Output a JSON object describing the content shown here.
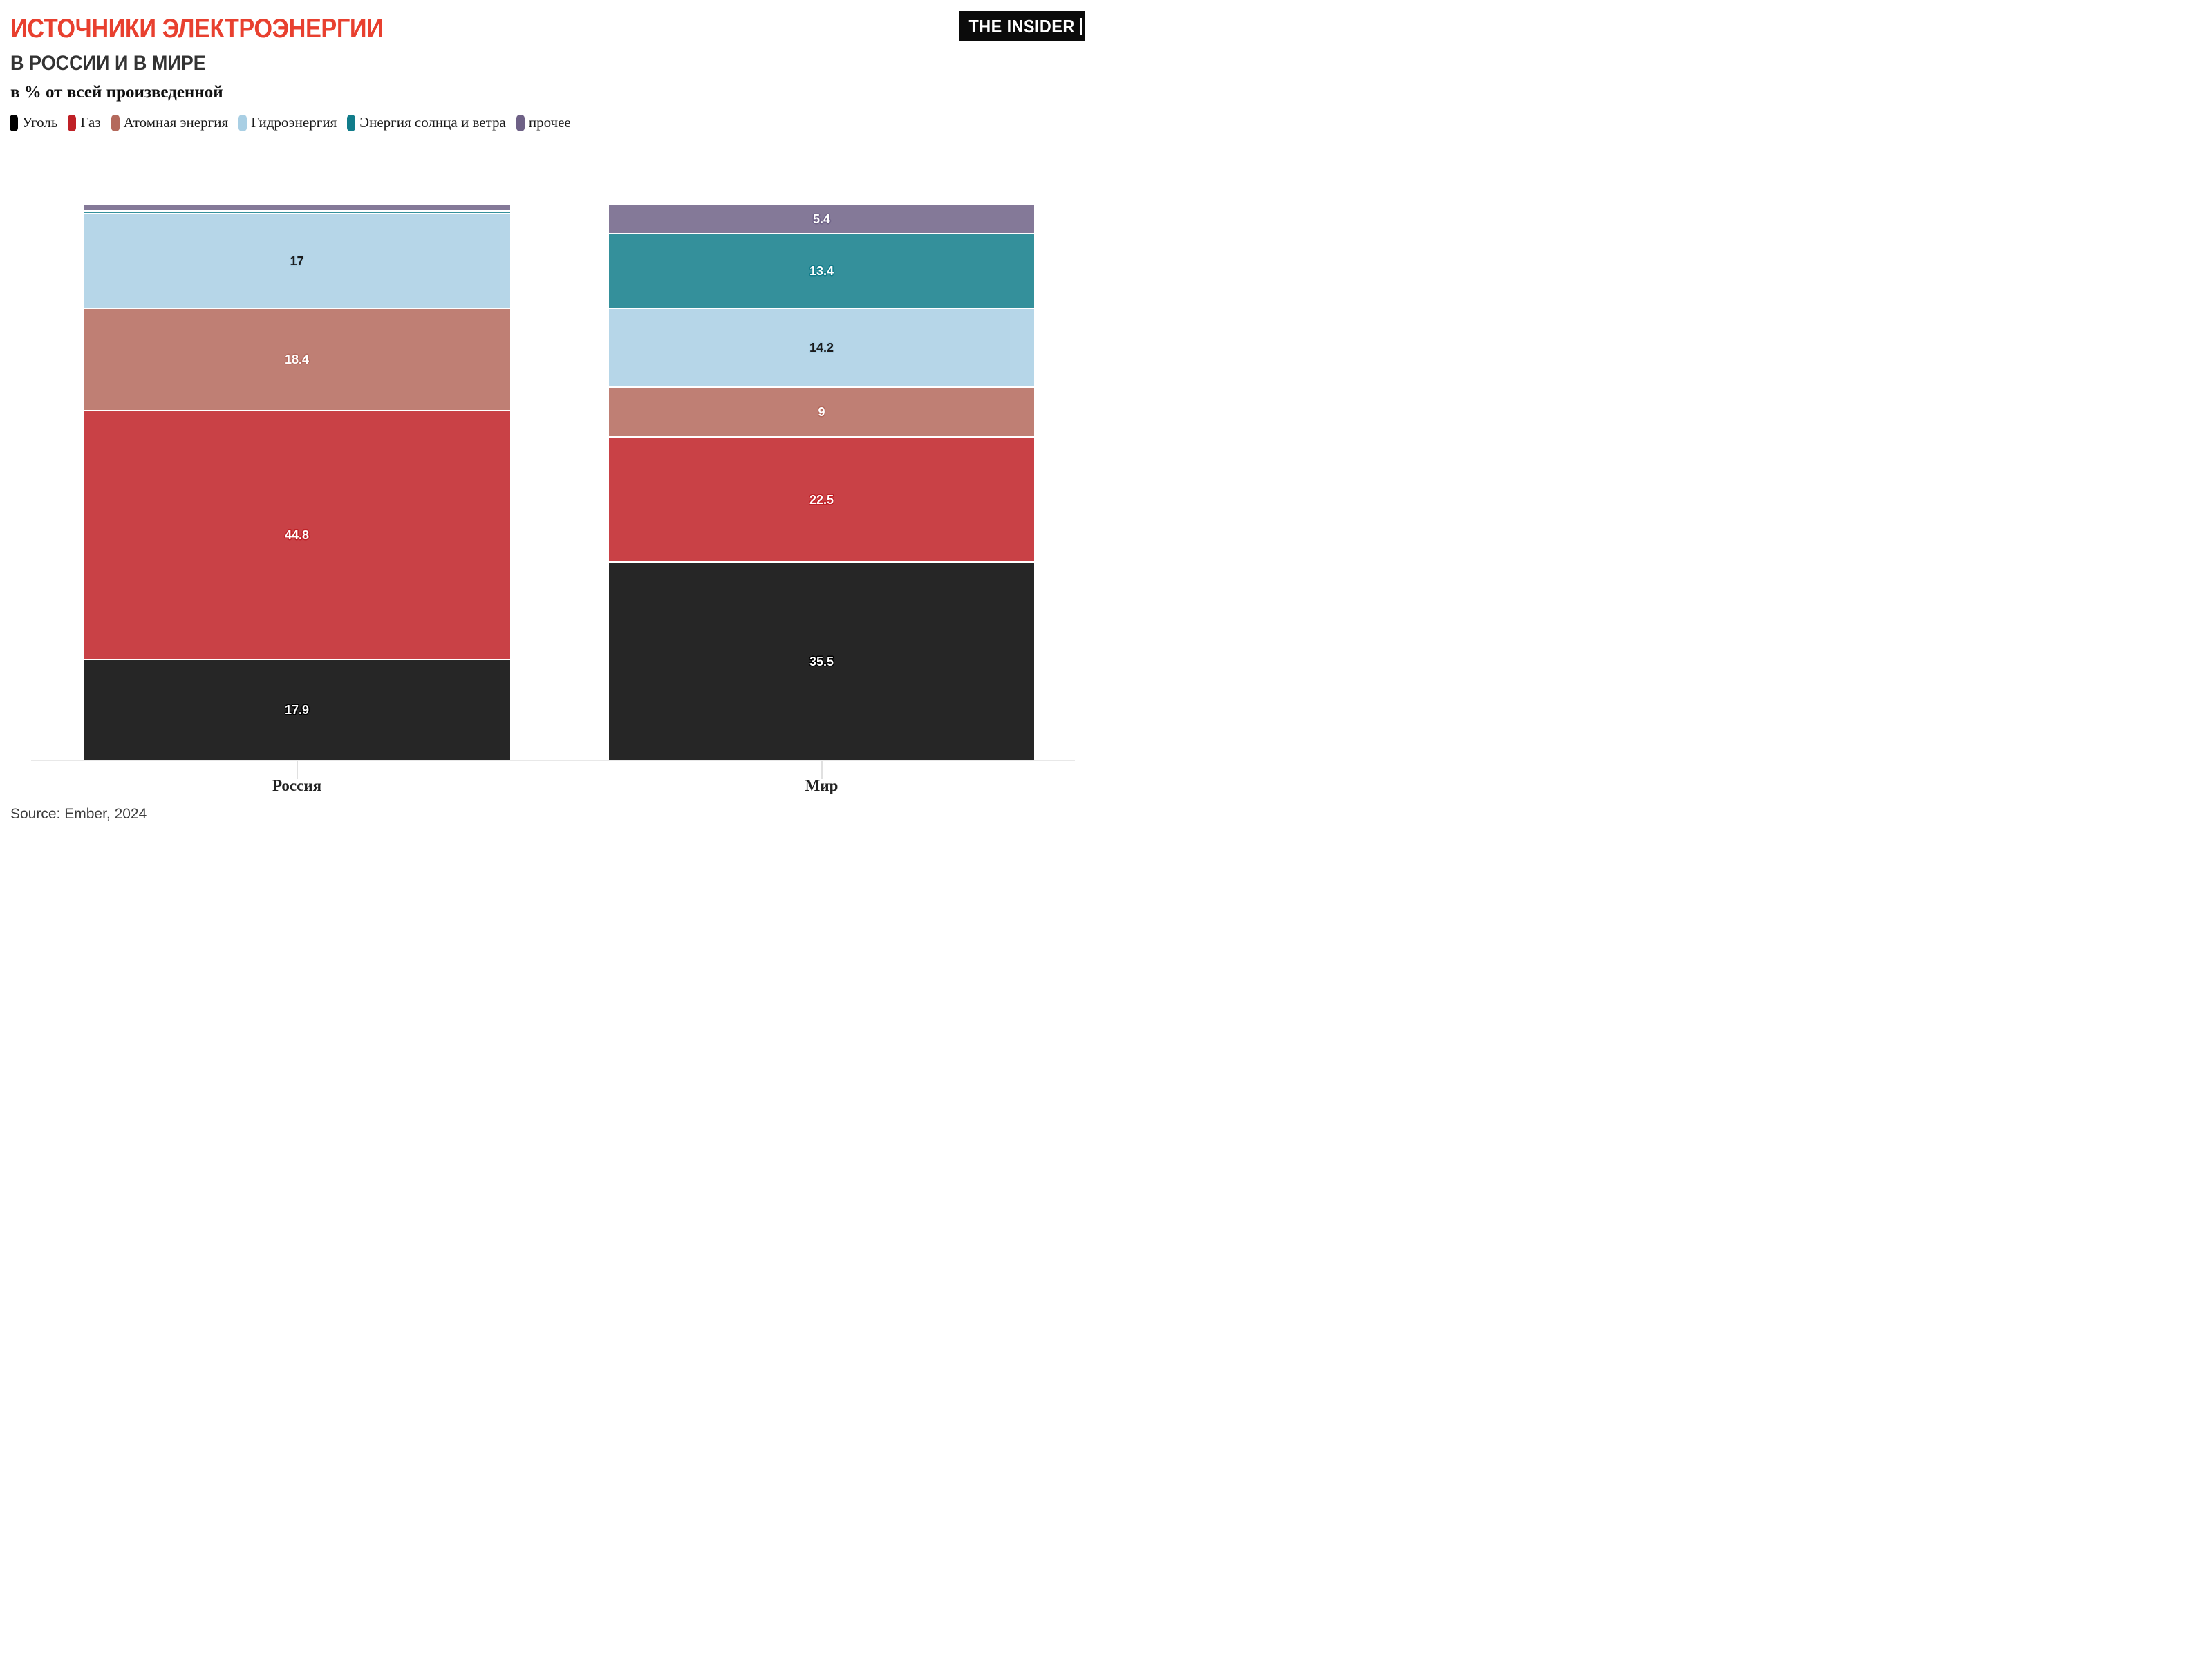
{
  "header": {
    "title": "ИСТОЧНИКИ ЭЛЕКТРОЭНЕРГИИ",
    "subtitle": "В РОССИИ И В МИРЕ",
    "note": "в % от всей произведенной",
    "accent_color": "#e8402f",
    "logo_text": "THE INSIDER"
  },
  "chart_data": {
    "type": "bar",
    "variant": "stacked-percentage",
    "title": "ИСТОЧНИКИ ЭЛЕКТРОЭНЕРГИИ В РОССИИ И В МИРЕ",
    "ylabel": "в % от всей произведенной",
    "categories": [
      "Россия",
      "Мир"
    ],
    "series": [
      {
        "name": "Уголь",
        "color": "#000000",
        "label_text_color": "#ffffff",
        "values": [
          17.9,
          35.5
        ],
        "labels": [
          "17.9",
          "35.5"
        ]
      },
      {
        "name": "Газ",
        "color": "#bf2026",
        "label_text_color": "#ffffff",
        "values": [
          44.8,
          22.5
        ],
        "labels": [
          "44.8",
          "22.5"
        ]
      },
      {
        "name": "Атомная энергия",
        "color": "#b4695c",
        "label_text_color": "#ffffff",
        "values": [
          18.4,
          9
        ],
        "labels": [
          "18.4",
          "9"
        ]
      },
      {
        "name": "Гидроэнергия",
        "color": "#a9cfe4",
        "label_text_color": "#1a1a1a",
        "values": [
          17,
          14.2
        ],
        "labels": [
          "17",
          "14.2"
        ]
      },
      {
        "name": "Энергия солнца и ветра",
        "color": "#117c8a",
        "label_text_color": "#ffffff",
        "values": [
          0.5,
          13.4
        ],
        "labels": [
          "",
          "13.4"
        ]
      },
      {
        "name": "прочее",
        "color": "#6e6186",
        "label_text_color": "#ffffff",
        "values": [
          1.1,
          5.4
        ],
        "labels": [
          "",
          "5.4"
        ]
      }
    ],
    "stack_order_bottom_to_top": [
      "Уголь",
      "Газ",
      "Атомная энергия",
      "Гидроэнергия",
      "Энергия солнца и ветра",
      "прочее"
    ],
    "ylim": [
      0,
      100
    ],
    "grid": false,
    "legend_position": "top"
  },
  "footer": {
    "source": "Source: Ember, 2024"
  }
}
